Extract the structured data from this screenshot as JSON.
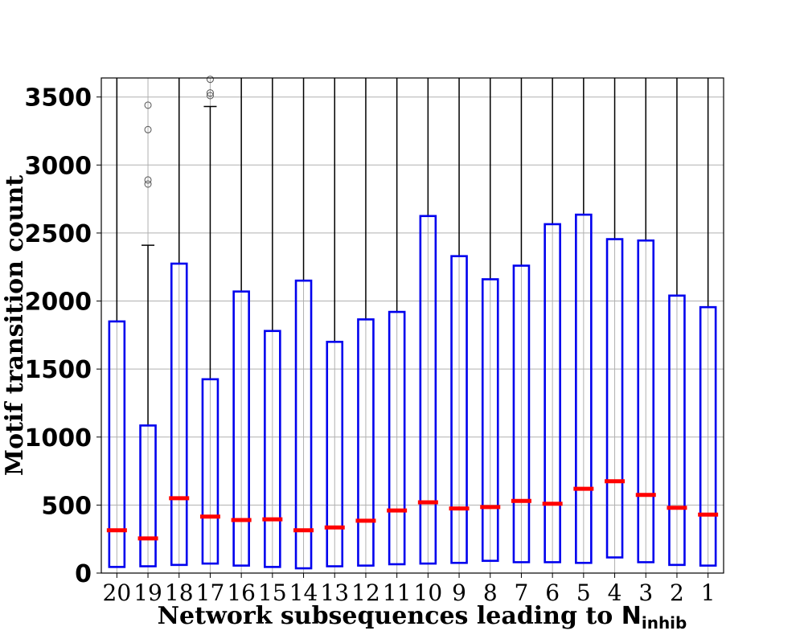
{
  "chart_data": {
    "type": "boxplot",
    "xlabel_text": "Network subsequences leading to ",
    "xlabel_symbol": "N",
    "xlabel_subscript": "inhib",
    "ylabel": "Motif transition count",
    "ylim": [
      0,
      3640
    ],
    "yticks": [
      0,
      500,
      1000,
      1500,
      2000,
      2500,
      3000,
      3500
    ],
    "grid": true,
    "colors": {
      "box": "#0000ee",
      "median": "#ff0000",
      "whisker": "#000000",
      "grid": "#b0b0b0",
      "flier": "#555555"
    },
    "categories": [
      "20",
      "19",
      "18",
      "17",
      "16",
      "15",
      "14",
      "13",
      "12",
      "11",
      "10",
      "9",
      "8",
      "7",
      "6",
      "5",
      "4",
      "3",
      "2",
      "1"
    ],
    "boxes": [
      {
        "label": "20",
        "q1": 45,
        "median": 315,
        "q3": 1850,
        "whisker_high": 3640,
        "fliers": []
      },
      {
        "label": "19",
        "q1": 50,
        "median": 255,
        "q3": 1085,
        "whisker_high": 2410,
        "fliers": [
          2860,
          2890,
          3260,
          3440
        ]
      },
      {
        "label": "18",
        "q1": 60,
        "median": 550,
        "q3": 2275,
        "whisker_high": 3640,
        "fliers": []
      },
      {
        "label": "17",
        "q1": 70,
        "median": 415,
        "q3": 1425,
        "whisker_high": 3430,
        "fliers": [
          3510,
          3530,
          3630
        ]
      },
      {
        "label": "16",
        "q1": 55,
        "median": 390,
        "q3": 2070,
        "whisker_high": 3640,
        "fliers": []
      },
      {
        "label": "15",
        "q1": 45,
        "median": 395,
        "q3": 1780,
        "whisker_high": 3640,
        "fliers": []
      },
      {
        "label": "14",
        "q1": 35,
        "median": 315,
        "q3": 2150,
        "whisker_high": 3640,
        "fliers": []
      },
      {
        "label": "13",
        "q1": 50,
        "median": 335,
        "q3": 1700,
        "whisker_high": 3640,
        "fliers": []
      },
      {
        "label": "12",
        "q1": 55,
        "median": 385,
        "q3": 1865,
        "whisker_high": 3640,
        "fliers": []
      },
      {
        "label": "11",
        "q1": 65,
        "median": 460,
        "q3": 1920,
        "whisker_high": 3640,
        "fliers": []
      },
      {
        "label": "10",
        "q1": 70,
        "median": 520,
        "q3": 2625,
        "whisker_high": 3640,
        "fliers": []
      },
      {
        "label": "9",
        "q1": 75,
        "median": 475,
        "q3": 2330,
        "whisker_high": 3640,
        "fliers": []
      },
      {
        "label": "8",
        "q1": 90,
        "median": 485,
        "q3": 2160,
        "whisker_high": 3640,
        "fliers": []
      },
      {
        "label": "7",
        "q1": 80,
        "median": 530,
        "q3": 2260,
        "whisker_high": 3640,
        "fliers": []
      },
      {
        "label": "6",
        "q1": 80,
        "median": 510,
        "q3": 2565,
        "whisker_high": 3640,
        "fliers": []
      },
      {
        "label": "5",
        "q1": 75,
        "median": 620,
        "q3": 2635,
        "whisker_high": 3640,
        "fliers": []
      },
      {
        "label": "4",
        "q1": 115,
        "median": 675,
        "q3": 2455,
        "whisker_high": 3640,
        "fliers": []
      },
      {
        "label": "3",
        "q1": 80,
        "median": 575,
        "q3": 2445,
        "whisker_high": 3640,
        "fliers": []
      },
      {
        "label": "2",
        "q1": 60,
        "median": 480,
        "q3": 2040,
        "whisker_high": 3640,
        "fliers": []
      },
      {
        "label": "1",
        "q1": 55,
        "median": 430,
        "q3": 1955,
        "whisker_high": 3640,
        "fliers": []
      }
    ]
  }
}
